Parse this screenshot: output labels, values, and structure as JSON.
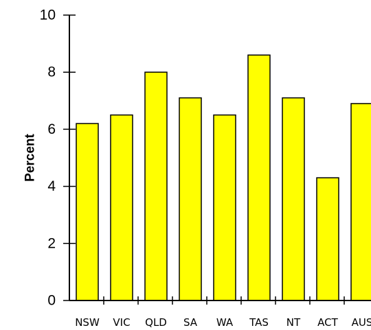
{
  "chart_data": {
    "type": "bar",
    "categories": [
      "NSW",
      "VIC",
      "QLD",
      "SA",
      "WA",
      "TAS",
      "NT",
      "ACT",
      "AUS"
    ],
    "values": [
      6.2,
      6.5,
      8.0,
      7.1,
      6.5,
      8.6,
      7.1,
      4.3,
      6.9
    ],
    "title": "",
    "xlabel": "",
    "ylabel": "Percent",
    "ylim": [
      0,
      10
    ],
    "yticks": [
      "0",
      "2",
      "4",
      "6",
      "8",
      "10"
    ],
    "grid": false,
    "legend": "none",
    "bar_color": "#ffff00",
    "bar_edge_color": "#000000"
  }
}
